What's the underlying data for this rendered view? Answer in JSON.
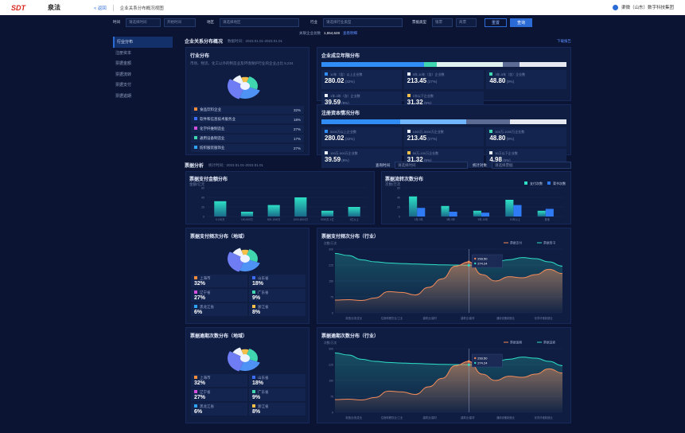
{
  "header": {
    "logo": "SDT",
    "brand": "泉法",
    "back": "< 返回",
    "crumb": "企业关系分布概况视图",
    "user": "渠微（山东）数字科技集团"
  },
  "filters": {
    "items": [
      {
        "label": "时间",
        "value": "请选择时间",
        "value2": "开始时间"
      },
      {
        "label": "地区",
        "value": "请选择地区"
      },
      {
        "label": "行业",
        "value": "请选择行业类型"
      },
      {
        "label": "票据类型",
        "value": "银票",
        "value2": "商票"
      }
    ],
    "reset": "重置",
    "query": "查询"
  },
  "sidebar": {
    "items": [
      "行业分布",
      "注册资本",
      "票据金额",
      "票据流转",
      "票据支付",
      "票据逾期"
    ],
    "active": 0
  },
  "overview": {
    "title": "企业关系分布概况",
    "date": "数据时间：2023.01.01-2023.01.01",
    "total_label": "关联企业总数",
    "total": "1,654,628",
    "total_link": "查看明细",
    "download": "下载报告"
  },
  "industry": {
    "title": "行业分布",
    "desc": "市场、物流、化工以外的制造业及环境保护行业的企业占比 5,234",
    "rows": [
      {
        "name": "食品饮料企业",
        "pct": "32%",
        "color": "#f48c3b"
      },
      {
        "name": "软件和信息技术服务业",
        "pct": "18%",
        "color": "#3d6cf5"
      },
      {
        "name": "化学纤维制造业",
        "pct": "27%",
        "color": "#d44fdc"
      },
      {
        "name": "通用设备制造业",
        "pct": "17%",
        "color": "#3fd6b0"
      },
      {
        "name": "纺织服装服饰业",
        "pct": "27%",
        "color": "#2fa3f2"
      }
    ]
  },
  "founded": {
    "title": "企业成立年限分布",
    "stats": [
      {
        "l": "10年（含）以上企业数",
        "v": "280.02",
        "p": "(32%)",
        "c": "#2f8df5"
      },
      {
        "l": "5年-10年（含）企业数",
        "v": "213.45",
        "p": "(27%)",
        "c": "#eaf0ff"
      },
      {
        "l": "3年-5年（含）企业数",
        "v": "48.80",
        "p": "(9%)",
        "c": "#3fd6b0"
      },
      {
        "l": "1年-3年（含）企业数",
        "v": "39.59",
        "p": "(9%)",
        "c": "#eaf0ff"
      },
      {
        "l": "1年以下企业数",
        "v": "31.32",
        "p": "(9%)",
        "c": "#f5c04a"
      }
    ]
  },
  "capital": {
    "title": "注册资本情况分布",
    "stats": [
      {
        "l": "5000万以上企业数",
        "v": "280.02",
        "p": "(32%)",
        "c": "#2f8df5"
      },
      {
        "l": "1000万-5000万企业数",
        "v": "213.45",
        "p": "(27%)",
        "c": "#eaf0ff"
      },
      {
        "l": "500万-1000万企业数",
        "v": "48.80",
        "p": "(9%)",
        "c": "#3fd6b0"
      },
      {
        "l": "100万-500万企业数",
        "v": "39.59",
        "p": "(9%)",
        "c": "#eaf0ff"
      },
      {
        "l": "50万-100万企业数",
        "v": "31.32",
        "p": "(9%)",
        "c": "#f5c04a"
      },
      {
        "l": "50万以下企业数",
        "v": "4.98",
        "p": "(5%)",
        "c": "#eaf0ff"
      }
    ]
  },
  "bill": {
    "title": "票据分析",
    "date": "统计时间：2023.01.01-2023.01.01",
    "f1": "请选择时间",
    "f2": "请选择票据",
    "lbl1": "查询时间",
    "lbl2": "统计对象"
  },
  "pay_amount": {
    "title": "票据支付金额分布",
    "unit": "金额/亿元"
  },
  "transfer": {
    "title": "票据流转次数分布",
    "unit": "次数/万次",
    "legend": [
      "支付次数",
      "背书次数"
    ]
  },
  "pay_region": {
    "title": "票据支付频次分布（地域）",
    "items": [
      {
        "n": "上海市",
        "v": "32%",
        "c": "#f48c3b"
      },
      {
        "n": "山东省",
        "v": "18%",
        "c": "#3d6cf5"
      },
      {
        "n": "辽宁省",
        "v": "27%",
        "c": "#d44fdc"
      },
      {
        "n": "广东省",
        "v": "9%",
        "c": "#3fd6b0"
      },
      {
        "n": "黑龙江省",
        "v": "6%",
        "c": "#2fa3f2"
      },
      {
        "n": "浙江省",
        "v": "8%",
        "c": "#f5c04a"
      }
    ]
  },
  "pay_industry": {
    "title": "票据支付频次分布（行业）",
    "unit": "次数/万次",
    "legend": [
      "票据支付",
      "票据背书"
    ],
    "tip": [
      "293.50",
      "274.24"
    ],
    "xcats": [
      "制造业/批发业",
      "住宿和餐饮业/工业",
      "建筑业/建材",
      "建筑业/建材",
      "通用设备制造业",
      "化学纤维制造业"
    ]
  },
  "overdue_region": {
    "title": "票据逾期次数分布（地域）",
    "items": [
      {
        "n": "上海市",
        "v": "32%",
        "c": "#f48c3b"
      },
      {
        "n": "山东省",
        "v": "18%",
        "c": "#3d6cf5"
      },
      {
        "n": "辽宁省",
        "v": "27%",
        "c": "#d44fdc"
      },
      {
        "n": "广东省",
        "v": "9%",
        "c": "#3fd6b0"
      },
      {
        "n": "黑龙江省",
        "v": "6%",
        "c": "#2fa3f2"
      },
      {
        "n": "浙江省",
        "v": "8%",
        "c": "#f5c04a"
      }
    ]
  },
  "overdue_industry": {
    "title": "票据逾期次数分布（行业）",
    "unit": "次数/万次",
    "legend": [
      "票据逾期",
      "票据追索"
    ],
    "tip": [
      "293.50",
      "274.24"
    ],
    "xcats": [
      "制造业/批发业",
      "住宿和餐饮业/工业",
      "建筑业/建材",
      "建筑业/建材",
      "通用设备制造业",
      "化学纤维制造业"
    ]
  },
  "chart_data": [
    {
      "type": "bar",
      "title": "票据支付金额分布",
      "categories": [
        "0-100万",
        "100-500万",
        "500-1000万",
        "1000-5000万",
        "5000万-1亿",
        "1亿以上"
      ],
      "values": [
        32,
        10,
        24,
        40,
        12,
        20
      ],
      "ylim": [
        0,
        60
      ]
    },
    {
      "type": "bar",
      "title": "票据流转次数分布",
      "categories": [
        "1年-3年",
        "3年-5年",
        "5年-10年",
        "10年以上",
        "其他"
      ],
      "series": [
        {
          "name": "支付次数",
          "values": [
            42,
            22,
            12,
            35,
            12
          ]
        },
        {
          "name": "背书次数",
          "values": [
            18,
            10,
            8,
            24,
            16
          ]
        }
      ],
      "ylim": [
        0,
        60
      ]
    },
    {
      "type": "area",
      "title": "票据支付频次分布（行业）",
      "series": [
        {
          "name": "票据支付",
          "values": [
            60,
            62,
            58,
            70,
            100,
            96,
            84,
            120,
            160,
            220,
            240,
            180,
            150,
            170,
            165,
            180,
            205,
            185
          ]
        },
        {
          "name": "票据背书",
          "values": [
            280,
            270,
            250,
            240,
            235,
            232,
            230,
            228,
            226,
            225,
            224,
            228,
            240,
            250,
            260,
            255,
            240,
            220
          ]
        }
      ],
      "ylim": [
        0,
        300
      ]
    },
    {
      "type": "area",
      "title": "票据逾期次数分布（行业）",
      "series": [
        {
          "name": "票据逾期",
          "values": [
            60,
            62,
            58,
            70,
            100,
            96,
            84,
            120,
            160,
            220,
            240,
            180,
            150,
            170,
            165,
            180,
            205,
            185
          ]
        },
        {
          "name": "票据追索",
          "values": [
            280,
            270,
            250,
            240,
            235,
            232,
            230,
            228,
            226,
            225,
            224,
            228,
            240,
            250,
            260,
            255,
            240,
            220
          ]
        }
      ],
      "ylim": [
        0,
        300
      ]
    }
  ]
}
